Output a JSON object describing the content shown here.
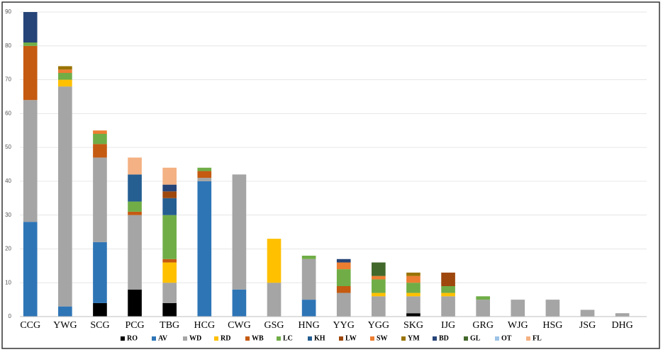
{
  "chart_data": {
    "type": "stacked_bar",
    "categories": [
      "CCG",
      "YWG",
      "SCG",
      "PCG",
      "TBG",
      "HCG",
      "CWG",
      "GSG",
      "HNG",
      "YYG",
      "YGG",
      "SKG",
      "IJG",
      "GRG",
      "WJG",
      "HSG",
      "JSG",
      "DHG"
    ],
    "series": [
      {
        "name": "RO",
        "color": "#000000",
        "values": [
          0,
          0,
          4,
          8,
          4,
          0,
          0,
          0,
          0,
          0,
          0,
          1,
          0,
          0,
          0,
          0,
          0,
          0
        ]
      },
      {
        "name": "AV",
        "color": "#2e75b6",
        "values": [
          28,
          3,
          18,
          0,
          0,
          40,
          8,
          0,
          5,
          0,
          0,
          0,
          0,
          0,
          0,
          0,
          0,
          0
        ]
      },
      {
        "name": "WD",
        "color": "#a5a5a5",
        "values": [
          36,
          65,
          25,
          22,
          6,
          1,
          34,
          10,
          12,
          7,
          6,
          5,
          6,
          5,
          5,
          5,
          2,
          1
        ]
      },
      {
        "name": "RD",
        "color": "#ffc000",
        "values": [
          0,
          2,
          0,
          0,
          6,
          0,
          0,
          13,
          0,
          0,
          1,
          1,
          1,
          0,
          0,
          0,
          0,
          0
        ]
      },
      {
        "name": "WB",
        "color": "#c55a11",
        "values": [
          16,
          0,
          4,
          1,
          1,
          2,
          0,
          0,
          0,
          2,
          0,
          0,
          0,
          0,
          0,
          0,
          0,
          0
        ]
      },
      {
        "name": "LC",
        "color": "#70ad47",
        "values": [
          1,
          2,
          3,
          3,
          13,
          1,
          0,
          0,
          1,
          5,
          4,
          3,
          2,
          1,
          0,
          0,
          0,
          0
        ]
      },
      {
        "name": "KH",
        "color": "#255e91",
        "values": [
          0,
          0,
          0,
          8,
          5,
          0,
          0,
          0,
          0,
          0,
          0,
          0,
          0,
          0,
          0,
          0,
          0,
          0
        ]
      },
      {
        "name": "LW",
        "color": "#9e480e",
        "values": [
          0,
          0,
          0,
          0,
          2,
          0,
          0,
          0,
          0,
          0,
          0,
          0,
          4,
          0,
          0,
          0,
          0,
          0
        ]
      },
      {
        "name": "SW",
        "color": "#ed7d31",
        "values": [
          0,
          1,
          1,
          0,
          0,
          0,
          0,
          0,
          0,
          2,
          1,
          2,
          0,
          0,
          0,
          0,
          0,
          0
        ]
      },
      {
        "name": "YM",
        "color": "#997300",
        "values": [
          0,
          1,
          0,
          0,
          0,
          0,
          0,
          0,
          0,
          0,
          0,
          1,
          0,
          0,
          0,
          0,
          0,
          0
        ]
      },
      {
        "name": "BD",
        "color": "#264478",
        "values": [
          9,
          0,
          0,
          0,
          2,
          0,
          0,
          0,
          0,
          1,
          0,
          0,
          0,
          0,
          0,
          0,
          0,
          0
        ]
      },
      {
        "name": "GL",
        "color": "#43682b",
        "values": [
          0,
          0,
          0,
          0,
          0,
          0,
          0,
          0,
          0,
          0,
          4,
          0,
          0,
          0,
          0,
          0,
          0,
          0
        ]
      },
      {
        "name": "OT",
        "color": "#9dc3e6",
        "values": [
          0,
          0,
          0,
          0,
          0,
          0,
          0,
          0,
          0,
          0,
          0,
          0,
          0,
          0,
          0,
          0,
          0,
          0
        ]
      },
      {
        "name": "FL",
        "color": "#f4b183",
        "values": [
          0,
          0,
          0,
          5,
          5,
          0,
          0,
          0,
          0,
          0,
          0,
          0,
          0,
          0,
          0,
          0,
          0,
          0
        ]
      }
    ],
    "ylim": [
      0,
      90
    ],
    "yticks": [
      0,
      10,
      20,
      30,
      40,
      50,
      60,
      70,
      80,
      90
    ],
    "grid": true
  }
}
